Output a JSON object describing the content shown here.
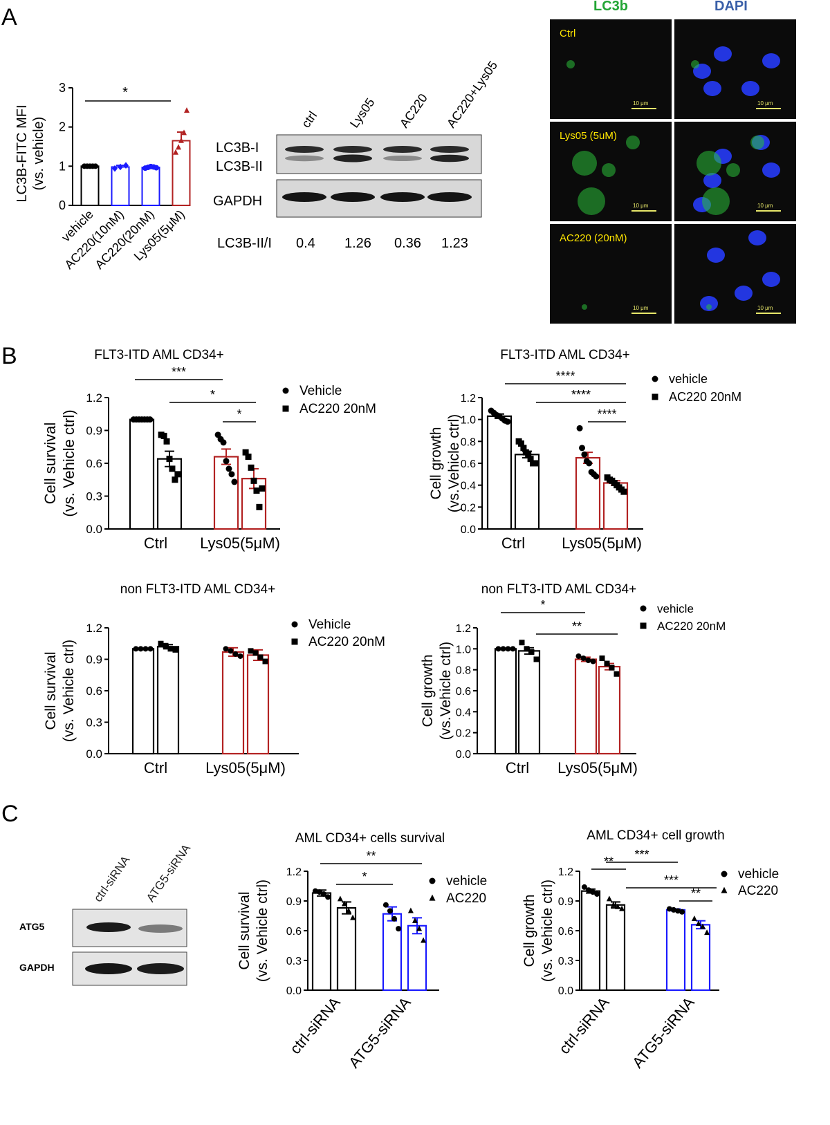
{
  "panel_letters": {
    "a": "A",
    "b": "B",
    "c": "C"
  },
  "western_a": {
    "lanes": [
      "ctrl",
      "Lys05",
      "AC220",
      "AC220+Lys05"
    ],
    "rows": [
      "LC3B-I",
      "LC3B-II",
      "GAPDH"
    ],
    "ratio_label": "LC3B-II/I",
    "ratios": [
      "0.4",
      "1.26",
      "0.36",
      "1.23"
    ]
  },
  "microscopy": {
    "channels": [
      "LC3b",
      "DAPI"
    ],
    "channel_colors": [
      "#23a535",
      "#3a5fa8"
    ],
    "rows": [
      "Ctrl",
      "Lys05 (5uM)",
      "AC220 (20nM)"
    ],
    "scale_bar": "10 μm"
  },
  "western_c": {
    "lanes": [
      "ctrl-siRNA",
      "ATG5-siRNA"
    ],
    "rows": [
      "ATG5",
      "GAPDH"
    ]
  },
  "chart_data": [
    {
      "id": "A-MFI",
      "type": "bar",
      "title": "",
      "ylabel": "LC3B-FITC MFI\n(vs. vehicle)",
      "categories": [
        "vehicle",
        "AC220(10nM)",
        "AC220(20nM)",
        "Lys05(5μM)"
      ],
      "values": [
        1.0,
        0.98,
        0.97,
        1.65
      ],
      "errors": [
        0.0,
        0.04,
        0.03,
        0.22
      ],
      "points": [
        [
          1.0,
          1.0,
          1.0,
          1.0,
          1.0
        ],
        [
          0.94,
          0.98,
          1.02
        ],
        [
          0.95,
          0.97,
          0.99,
          0.98,
          0.96
        ],
        [
          1.35,
          1.48,
          1.65,
          1.85,
          2.42
        ]
      ],
      "colors": [
        "#000000",
        "#1a1aff",
        "#1a1aff",
        "#b22222"
      ],
      "markers": [
        "circle",
        "diamond",
        "circle",
        "triangle"
      ],
      "ylim": [
        0,
        3
      ],
      "yticks": [
        "0",
        "1",
        "2",
        "3"
      ],
      "sig": [
        {
          "label": "*"
        }
      ]
    },
    {
      "id": "B1",
      "type": "bar",
      "title": "FLT3-ITD AML CD34+",
      "ylabel": "Cell survival\n(vs. Vehicle ctrl)",
      "groups": [
        "Ctrl",
        "Lys05(5μM)"
      ],
      "series": [
        {
          "name": "Vehicle",
          "marker": "circle",
          "values": [
            1.0,
            0.66
          ],
          "errors": [
            0.0,
            0.07
          ],
          "points": [
            [
              1,
              1,
              1,
              1,
              1,
              1,
              1
            ],
            [
              0.86,
              0.82,
              0.79,
              0.62,
              0.55,
              0.5,
              0.43
            ]
          ]
        },
        {
          "name": "AC220 20nM",
          "marker": "square",
          "values": [
            0.64,
            0.46
          ],
          "errors": [
            0.07,
            0.09
          ],
          "points": [
            [
              0.86,
              0.85,
              0.8,
              0.64,
              0.55,
              0.45,
              0.5
            ],
            [
              0.7,
              0.66,
              0.56,
              0.44,
              0.35,
              0.2,
              0.37
            ]
          ]
        }
      ],
      "group_colors": [
        "#000000",
        "#b22222"
      ],
      "ylim": [
        0,
        1.2
      ],
      "yticks": [
        "0.0",
        "0.3",
        "0.6",
        "0.9",
        "1.2"
      ],
      "sig": [
        {
          "label": "***"
        },
        {
          "label": "*"
        },
        {
          "label": "*"
        }
      ]
    },
    {
      "id": "B2",
      "type": "bar",
      "title": "FLT3-ITD AML CD34+",
      "ylabel": "Cell growth\n(vs.Vehicle ctrl)",
      "groups": [
        "Ctrl",
        "Lys05(5μM)"
      ],
      "series": [
        {
          "name": "vehicle",
          "marker": "circle",
          "values": [
            1.03,
            0.65
          ],
          "errors": [
            0.02,
            0.05
          ],
          "points": [
            [
              1.08,
              1.06,
              1.04,
              1.03,
              1.01,
              0.99,
              0.98
            ],
            [
              0.92,
              0.74,
              0.68,
              0.62,
              0.6,
              0.52,
              0.5,
              0.48
            ]
          ]
        },
        {
          "name": "AC220 20nM",
          "marker": "square",
          "values": [
            0.68,
            0.42
          ],
          "errors": [
            0.03,
            0.02
          ],
          "points": [
            [
              0.8,
              0.78,
              0.74,
              0.7,
              0.68,
              0.64,
              0.6,
              0.6
            ],
            [
              0.47,
              0.45,
              0.44,
              0.42,
              0.4,
              0.38,
              0.36,
              0.34
            ]
          ]
        }
      ],
      "group_colors": [
        "#000000",
        "#b22222"
      ],
      "ylim": [
        0,
        1.2
      ],
      "yticks": [
        "0.0",
        "0.2",
        "0.4",
        "0.6",
        "0.8",
        "1.0",
        "1.2"
      ],
      "sig": [
        {
          "label": "****"
        },
        {
          "label": "****"
        },
        {
          "label": "****"
        }
      ]
    },
    {
      "id": "B3",
      "type": "bar",
      "title": "non FLT3-ITD AML CD34+",
      "ylabel": "Cell survival\n(vs. Vehicle ctrl)",
      "groups": [
        "Ctrl",
        "Lys05(5μM)"
      ],
      "series": [
        {
          "name": "Vehicle",
          "marker": "circle",
          "values": [
            1.0,
            0.97
          ],
          "errors": [
            0.0,
            0.04
          ],
          "points": [
            [
              1,
              1,
              1,
              1
            ],
            [
              1.0,
              0.98,
              0.95,
              0.93
            ]
          ]
        },
        {
          "name": "AC220 20nM",
          "marker": "square",
          "values": [
            1.02,
            0.94
          ],
          "errors": [
            0.02,
            0.05
          ],
          "points": [
            [
              1.05,
              1.03,
              1.0,
              0.99
            ],
            [
              0.98,
              0.96,
              0.92,
              0.88
            ]
          ]
        }
      ],
      "group_colors": [
        "#000000",
        "#b22222"
      ],
      "ylim": [
        0,
        1.2
      ],
      "yticks": [
        "0.0",
        "0.3",
        "0.6",
        "0.9",
        "1.2"
      ],
      "sig": []
    },
    {
      "id": "B4",
      "type": "bar",
      "title": "non FLT3-ITD AML CD34+",
      "ylabel": "Cell growth\n(vs.Vehicle ctrl)",
      "groups": [
        "Ctrl",
        "Lys05(5μM)"
      ],
      "series": [
        {
          "name": "vehicle",
          "marker": "circle",
          "values": [
            1.0,
            0.9
          ],
          "errors": [
            0.0,
            0.02
          ],
          "points": [
            [
              1,
              1,
              1,
              1
            ],
            [
              0.93,
              0.91,
              0.89,
              0.88
            ]
          ]
        },
        {
          "name": "AC220 20nM",
          "marker": "square",
          "values": [
            0.98,
            0.83
          ],
          "errors": [
            0.03,
            0.03
          ],
          "points": [
            [
              1.06,
              1.0,
              0.97,
              0.9
            ],
            [
              0.91,
              0.86,
              0.82,
              0.76
            ]
          ]
        }
      ],
      "group_colors": [
        "#000000",
        "#b22222"
      ],
      "ylim": [
        0,
        1.2
      ],
      "yticks": [
        "0.0",
        "0.2",
        "0.4",
        "0.6",
        "0.8",
        "1.0",
        "1.2"
      ],
      "sig": [
        {
          "label": "*"
        },
        {
          "label": "**"
        }
      ]
    },
    {
      "id": "C1",
      "type": "bar",
      "title": "AML CD34+ cells survival",
      "ylabel": "Cell survival\n(vs. Vehicle ctrl)",
      "groups": [
        "ctrl-siRNA",
        "ATG5-siRNA"
      ],
      "series": [
        {
          "name": "vehicle",
          "marker": "circle",
          "values": [
            0.98,
            0.77
          ],
          "errors": [
            0.03,
            0.07
          ],
          "points": [
            [
              1.0,
              0.99,
              0.97,
              0.94
            ],
            [
              0.86,
              0.8,
              0.72,
              0.62
            ]
          ]
        },
        {
          "name": "AC220",
          "marker": "triangle",
          "values": [
            0.83,
            0.65
          ],
          "errors": [
            0.06,
            0.08
          ],
          "points": [
            [
              0.92,
              0.87,
              0.8,
              0.73
            ],
            [
              0.8,
              0.7,
              0.62,
              0.5
            ]
          ]
        }
      ],
      "group_colors": [
        "#000000",
        "#1a1aff"
      ],
      "ylim": [
        0,
        1.2
      ],
      "yticks": [
        "0.0",
        "0.3",
        "0.6",
        "0.9",
        "1.2"
      ],
      "sig": [
        {
          "label": "**"
        },
        {
          "label": "*"
        }
      ]
    },
    {
      "id": "C2",
      "type": "bar",
      "title": "AML CD34+ cell growth",
      "ylabel": "Cell growth\n(vs. Vehicle ctrl)",
      "groups": [
        "ctrl-siRNA",
        "ATG5-siRNA"
      ],
      "series": [
        {
          "name": "vehicle",
          "marker": "circle",
          "values": [
            1.0,
            0.81
          ],
          "errors": [
            0.02,
            0.01
          ],
          "points": [
            [
              1.04,
              1.01,
              0.99,
              0.97
            ],
            [
              0.82,
              0.81,
              0.8,
              0.79
            ]
          ]
        },
        {
          "name": "AC220",
          "marker": "triangle",
          "values": [
            0.86,
            0.66
          ],
          "errors": [
            0.03,
            0.04
          ],
          "points": [
            [
              0.92,
              0.86,
              0.84,
              0.82
            ],
            [
              0.72,
              0.67,
              0.64,
              0.58
            ]
          ]
        }
      ],
      "group_colors": [
        "#000000",
        "#1a1aff"
      ],
      "ylim": [
        0,
        1.2
      ],
      "yticks": [
        "0.0",
        "0.3",
        "0.6",
        "0.9",
        "1.2"
      ],
      "sig": [
        {
          "label": "**"
        },
        {
          "label": "***"
        },
        {
          "label": "***"
        },
        {
          "label": "**"
        }
      ]
    }
  ]
}
